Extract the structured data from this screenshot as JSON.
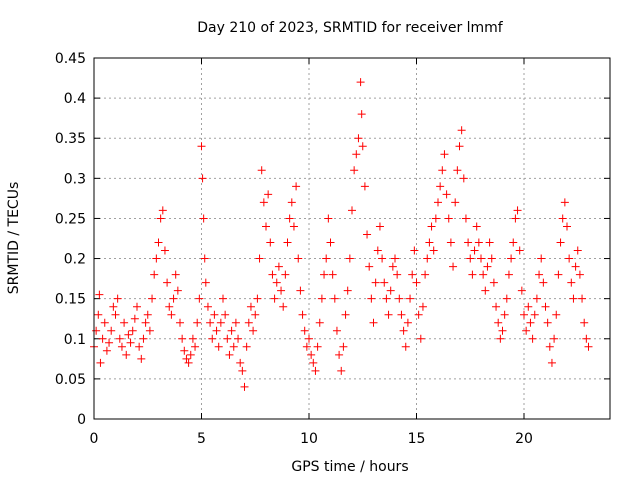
{
  "chart_data": {
    "type": "scatter",
    "title": "Day 210 of 2023, SRMTID for receiver lmmf",
    "xlabel": "GPS time / hours",
    "ylabel": "SRMTID / TECUs",
    "xlim": [
      0,
      24
    ],
    "ylim": [
      0,
      0.45
    ],
    "xticks": [
      0,
      5,
      10,
      15,
      20
    ],
    "xtick_labels": [
      "0",
      "5",
      "10",
      "15",
      "20"
    ],
    "yticks": [
      0,
      0.05,
      0.1,
      0.15,
      0.2,
      0.25,
      0.3,
      0.35,
      0.4,
      0.45
    ],
    "ytick_labels": [
      "0",
      "0.05",
      "0.1",
      "0.15",
      "0.2",
      "0.25",
      "0.3",
      "0.35",
      "0.4",
      "0.45"
    ],
    "grid": true,
    "marker": "+",
    "series": [
      {
        "name": "SRMTID",
        "color": "#ff0000",
        "points": [
          [
            0.0,
            0.09
          ],
          [
            0.1,
            0.11
          ],
          [
            0.2,
            0.13
          ],
          [
            0.25,
            0.155
          ],
          [
            0.3,
            0.07
          ],
          [
            0.4,
            0.1
          ],
          [
            0.5,
            0.12
          ],
          [
            0.6,
            0.085
          ],
          [
            0.7,
            0.095
          ],
          [
            0.8,
            0.11
          ],
          [
            0.9,
            0.14
          ],
          [
            1.0,
            0.13
          ],
          [
            1.1,
            0.15
          ],
          [
            1.2,
            0.1
          ],
          [
            1.3,
            0.09
          ],
          [
            1.4,
            0.12
          ],
          [
            1.5,
            0.08
          ],
          [
            1.6,
            0.105
          ],
          [
            1.7,
            0.095
          ],
          [
            1.8,
            0.11
          ],
          [
            1.9,
            0.125
          ],
          [
            2.0,
            0.14
          ],
          [
            2.1,
            0.09
          ],
          [
            2.2,
            0.075
          ],
          [
            2.3,
            0.1
          ],
          [
            2.4,
            0.12
          ],
          [
            2.5,
            0.13
          ],
          [
            2.6,
            0.11
          ],
          [
            2.7,
            0.15
          ],
          [
            2.8,
            0.18
          ],
          [
            2.9,
            0.2
          ],
          [
            3.0,
            0.22
          ],
          [
            3.1,
            0.25
          ],
          [
            3.2,
            0.26
          ],
          [
            3.3,
            0.21
          ],
          [
            3.4,
            0.17
          ],
          [
            3.5,
            0.14
          ],
          [
            3.6,
            0.13
          ],
          [
            3.7,
            0.15
          ],
          [
            3.8,
            0.18
          ],
          [
            3.9,
            0.16
          ],
          [
            4.0,
            0.12
          ],
          [
            4.1,
            0.1
          ],
          [
            4.2,
            0.085
          ],
          [
            4.3,
            0.075
          ],
          [
            4.4,
            0.07
          ],
          [
            4.5,
            0.08
          ],
          [
            4.6,
            0.1
          ],
          [
            4.7,
            0.09
          ],
          [
            4.8,
            0.12
          ],
          [
            4.9,
            0.15
          ],
          [
            5.0,
            0.34
          ],
          [
            5.05,
            0.3
          ],
          [
            5.1,
            0.25
          ],
          [
            5.15,
            0.2
          ],
          [
            5.2,
            0.17
          ],
          [
            5.3,
            0.14
          ],
          [
            5.4,
            0.12
          ],
          [
            5.5,
            0.1
          ],
          [
            5.6,
            0.13
          ],
          [
            5.7,
            0.11
          ],
          [
            5.8,
            0.09
          ],
          [
            5.9,
            0.12
          ],
          [
            6.0,
            0.15
          ],
          [
            6.1,
            0.13
          ],
          [
            6.2,
            0.1
          ],
          [
            6.3,
            0.08
          ],
          [
            6.4,
            0.11
          ],
          [
            6.5,
            0.09
          ],
          [
            6.6,
            0.12
          ],
          [
            6.7,
            0.1
          ],
          [
            6.8,
            0.07
          ],
          [
            6.9,
            0.06
          ],
          [
            7.0,
            0.04
          ],
          [
            7.1,
            0.09
          ],
          [
            7.2,
            0.12
          ],
          [
            7.3,
            0.14
          ],
          [
            7.4,
            0.11
          ],
          [
            7.5,
            0.13
          ],
          [
            7.6,
            0.15
          ],
          [
            7.7,
            0.2
          ],
          [
            7.8,
            0.31
          ],
          [
            7.9,
            0.27
          ],
          [
            8.0,
            0.24
          ],
          [
            8.1,
            0.28
          ],
          [
            8.2,
            0.22
          ],
          [
            8.3,
            0.18
          ],
          [
            8.4,
            0.15
          ],
          [
            8.5,
            0.17
          ],
          [
            8.6,
            0.19
          ],
          [
            8.7,
            0.16
          ],
          [
            8.8,
            0.14
          ],
          [
            8.9,
            0.18
          ],
          [
            9.0,
            0.22
          ],
          [
            9.1,
            0.25
          ],
          [
            9.2,
            0.27
          ],
          [
            9.3,
            0.24
          ],
          [
            9.4,
            0.29
          ],
          [
            9.5,
            0.2
          ],
          [
            9.6,
            0.16
          ],
          [
            9.7,
            0.13
          ],
          [
            9.8,
            0.11
          ],
          [
            9.9,
            0.09
          ],
          [
            10.0,
            0.1
          ],
          [
            10.1,
            0.08
          ],
          [
            10.2,
            0.07
          ],
          [
            10.3,
            0.06
          ],
          [
            10.4,
            0.09
          ],
          [
            10.5,
            0.12
          ],
          [
            10.6,
            0.15
          ],
          [
            10.7,
            0.18
          ],
          [
            10.8,
            0.2
          ],
          [
            10.9,
            0.25
          ],
          [
            11.0,
            0.22
          ],
          [
            11.1,
            0.18
          ],
          [
            11.2,
            0.15
          ],
          [
            11.3,
            0.11
          ],
          [
            11.4,
            0.08
          ],
          [
            11.5,
            0.06
          ],
          [
            11.6,
            0.09
          ],
          [
            11.7,
            0.13
          ],
          [
            11.8,
            0.16
          ],
          [
            11.9,
            0.2
          ],
          [
            12.0,
            0.26
          ],
          [
            12.1,
            0.31
          ],
          [
            12.2,
            0.33
          ],
          [
            12.3,
            0.35
          ],
          [
            12.4,
            0.42
          ],
          [
            12.45,
            0.38
          ],
          [
            12.5,
            0.34
          ],
          [
            12.6,
            0.29
          ],
          [
            12.7,
            0.23
          ],
          [
            12.8,
            0.19
          ],
          [
            12.9,
            0.15
          ],
          [
            13.0,
            0.12
          ],
          [
            13.1,
            0.17
          ],
          [
            13.2,
            0.21
          ],
          [
            13.3,
            0.24
          ],
          [
            13.4,
            0.2
          ],
          [
            13.5,
            0.17
          ],
          [
            13.6,
            0.15
          ],
          [
            13.7,
            0.13
          ],
          [
            13.8,
            0.16
          ],
          [
            13.9,
            0.19
          ],
          [
            14.0,
            0.2
          ],
          [
            14.1,
            0.18
          ],
          [
            14.2,
            0.15
          ],
          [
            14.3,
            0.13
          ],
          [
            14.4,
            0.11
          ],
          [
            14.5,
            0.09
          ],
          [
            14.6,
            0.12
          ],
          [
            14.7,
            0.15
          ],
          [
            14.8,
            0.18
          ],
          [
            14.9,
            0.21
          ],
          [
            15.0,
            0.17
          ],
          [
            15.1,
            0.13
          ],
          [
            15.2,
            0.1
          ],
          [
            15.3,
            0.14
          ],
          [
            15.4,
            0.18
          ],
          [
            15.5,
            0.2
          ],
          [
            15.6,
            0.22
          ],
          [
            15.7,
            0.24
          ],
          [
            15.8,
            0.21
          ],
          [
            15.9,
            0.25
          ],
          [
            16.0,
            0.27
          ],
          [
            16.1,
            0.29
          ],
          [
            16.2,
            0.31
          ],
          [
            16.3,
            0.33
          ],
          [
            16.4,
            0.28
          ],
          [
            16.5,
            0.25
          ],
          [
            16.6,
            0.22
          ],
          [
            16.7,
            0.19
          ],
          [
            16.8,
            0.27
          ],
          [
            16.9,
            0.31
          ],
          [
            17.0,
            0.34
          ],
          [
            17.1,
            0.36
          ],
          [
            17.2,
            0.3
          ],
          [
            17.3,
            0.25
          ],
          [
            17.4,
            0.22
          ],
          [
            17.5,
            0.2
          ],
          [
            17.6,
            0.18
          ],
          [
            17.7,
            0.21
          ],
          [
            17.8,
            0.24
          ],
          [
            17.9,
            0.22
          ],
          [
            18.0,
            0.2
          ],
          [
            18.1,
            0.18
          ],
          [
            18.2,
            0.16
          ],
          [
            18.3,
            0.19
          ],
          [
            18.4,
            0.22
          ],
          [
            18.5,
            0.2
          ],
          [
            18.6,
            0.17
          ],
          [
            18.7,
            0.14
          ],
          [
            18.8,
            0.12
          ],
          [
            18.9,
            0.1
          ],
          [
            19.0,
            0.11
          ],
          [
            19.1,
            0.13
          ],
          [
            19.2,
            0.15
          ],
          [
            19.3,
            0.18
          ],
          [
            19.4,
            0.2
          ],
          [
            19.5,
            0.22
          ],
          [
            19.6,
            0.25
          ],
          [
            19.7,
            0.26
          ],
          [
            19.8,
            0.21
          ],
          [
            19.9,
            0.16
          ],
          [
            20.0,
            0.13
          ],
          [
            20.1,
            0.11
          ],
          [
            20.2,
            0.14
          ],
          [
            20.3,
            0.12
          ],
          [
            20.4,
            0.1
          ],
          [
            20.5,
            0.13
          ],
          [
            20.6,
            0.15
          ],
          [
            20.7,
            0.18
          ],
          [
            20.8,
            0.2
          ],
          [
            20.9,
            0.17
          ],
          [
            21.0,
            0.14
          ],
          [
            21.1,
            0.12
          ],
          [
            21.2,
            0.09
          ],
          [
            21.3,
            0.07
          ],
          [
            21.4,
            0.1
          ],
          [
            21.5,
            0.13
          ],
          [
            21.6,
            0.18
          ],
          [
            21.7,
            0.22
          ],
          [
            21.8,
            0.25
          ],
          [
            21.9,
            0.27
          ],
          [
            22.0,
            0.24
          ],
          [
            22.1,
            0.2
          ],
          [
            22.2,
            0.17
          ],
          [
            22.3,
            0.15
          ],
          [
            22.4,
            0.19
          ],
          [
            22.5,
            0.21
          ],
          [
            22.6,
            0.18
          ],
          [
            22.7,
            0.15
          ],
          [
            22.8,
            0.12
          ],
          [
            22.9,
            0.1
          ],
          [
            23.0,
            0.09
          ]
        ]
      }
    ]
  }
}
